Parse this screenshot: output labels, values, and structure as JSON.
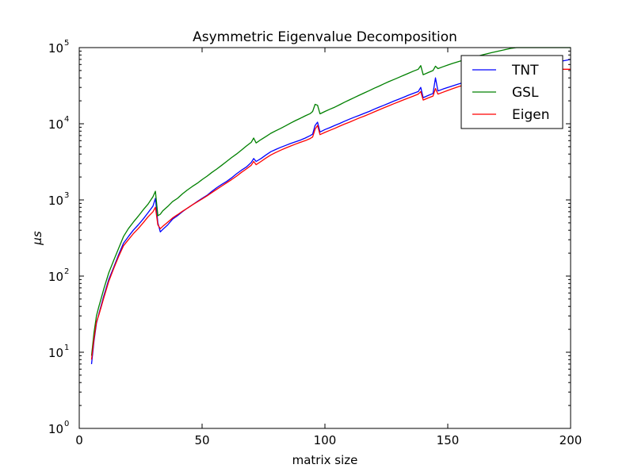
{
  "chart_data": {
    "type": "line",
    "title": "Asymmetric Eigenvalue Decomposition",
    "xlabel": "matrix size",
    "ylabel": "μs",
    "xlim": [
      0,
      200
    ],
    "ylim": [
      1,
      100000
    ],
    "yscale": "log",
    "grid": false,
    "legend_position": "top-right",
    "x_ticks": [
      0,
      50,
      100,
      150,
      200
    ],
    "x_tick_labels": [
      "0",
      "50",
      "100",
      "150",
      "200"
    ],
    "y_ticks": [
      1,
      10,
      100,
      1000,
      10000,
      100000
    ],
    "y_tick_labels": [
      {
        "base": "10",
        "exp": "0"
      },
      {
        "base": "10",
        "exp": "1"
      },
      {
        "base": "10",
        "exp": "2"
      },
      {
        "base": "10",
        "exp": "3"
      },
      {
        "base": "10",
        "exp": "4"
      },
      {
        "base": "10",
        "exp": "5"
      }
    ],
    "x": [
      5,
      6,
      7,
      8,
      9,
      10,
      12,
      14,
      16,
      18,
      20,
      22,
      24,
      26,
      28,
      30,
      31,
      32,
      33,
      34,
      36,
      38,
      40,
      42,
      44,
      46,
      48,
      50,
      52,
      54,
      56,
      58,
      60,
      62,
      64,
      66,
      68,
      70,
      71,
      72,
      74,
      76,
      78,
      80,
      82,
      84,
      86,
      88,
      90,
      92,
      94,
      95,
      96,
      97,
      98,
      100,
      102,
      104,
      106,
      108,
      110,
      112,
      114,
      116,
      118,
      120,
      122,
      124,
      126,
      128,
      130,
      132,
      134,
      136,
      138,
      139,
      140,
      142,
      144,
      145,
      146,
      148,
      150,
      152,
      154,
      156,
      158,
      160,
      162,
      164,
      166,
      168,
      170,
      172,
      174,
      176,
      178,
      180,
      182,
      184,
      186,
      188,
      190,
      192,
      194,
      196,
      198,
      200
    ],
    "series": [
      {
        "name": "TNT",
        "color": "#0000ff",
        "values": [
          7,
          14,
          24,
          32,
          42,
          55,
          90,
          130,
          190,
          270,
          330,
          400,
          470,
          560,
          680,
          830,
          1050,
          500,
          380,
          410,
          470,
          560,
          620,
          700,
          780,
          860,
          950,
          1050,
          1150,
          1300,
          1450,
          1600,
          1750,
          1950,
          2200,
          2450,
          2700,
          3100,
          3500,
          3200,
          3500,
          3900,
          4300,
          4600,
          4900,
          5200,
          5500,
          5800,
          6100,
          6500,
          7000,
          7300,
          9500,
          10500,
          7800,
          8400,
          8900,
          9500,
          10100,
          10800,
          11500,
          12200,
          12900,
          13700,
          14500,
          15500,
          16500,
          17500,
          18600,
          19800,
          21000,
          22300,
          23700,
          25100,
          26500,
          30000,
          22000,
          23500,
          25000,
          40000,
          27000,
          28500,
          30000,
          31500,
          33000,
          34500,
          36000,
          37500,
          39000,
          40500,
          42000,
          43500,
          45000,
          46500,
          48000,
          49500,
          51000,
          52500,
          54000,
          55500,
          57000,
          58500,
          60000,
          62000,
          64000,
          66000,
          68000,
          70000
        ]
      },
      {
        "name": "GSL",
        "color": "#008000",
        "values": [
          9,
          18,
          30,
          40,
          52,
          68,
          110,
          160,
          230,
          330,
          420,
          510,
          610,
          740,
          880,
          1100,
          1300,
          620,
          650,
          720,
          820,
          950,
          1050,
          1200,
          1350,
          1500,
          1650,
          1850,
          2050,
          2300,
          2550,
          2850,
          3200,
          3600,
          4000,
          4500,
          5100,
          5700,
          6500,
          5600,
          6200,
          6800,
          7500,
          8100,
          8700,
          9400,
          10200,
          11000,
          11800,
          12700,
          13600,
          14500,
          18000,
          17500,
          13500,
          14500,
          15500,
          16500,
          17800,
          19200,
          20600,
          22100,
          23700,
          25400,
          27200,
          29200,
          31200,
          33400,
          35700,
          38000,
          40500,
          43200,
          46000,
          49000,
          52000,
          58000,
          44000,
          47000,
          50000,
          57000,
          53000,
          56000,
          59000,
          62000,
          65000,
          68000,
          71000,
          74000,
          77000,
          80000,
          83000,
          86000,
          89000,
          92000,
          95000,
          98000,
          100000,
          100000,
          100000,
          100000,
          100000,
          100000,
          100000,
          100000,
          100000,
          100000,
          100000,
          100000
        ]
      },
      {
        "name": "Eigen",
        "color": "#ff0000",
        "values": [
          8,
          15,
          25,
          31,
          40,
          52,
          85,
          125,
          180,
          250,
          300,
          360,
          420,
          500,
          600,
          700,
          800,
          470,
          420,
          450,
          510,
          580,
          640,
          710,
          780,
          860,
          940,
          1030,
          1130,
          1250,
          1380,
          1520,
          1680,
          1850,
          2050,
          2300,
          2550,
          2850,
          3200,
          2900,
          3200,
          3550,
          3900,
          4200,
          4500,
          4800,
          5100,
          5400,
          5700,
          6000,
          6400,
          6700,
          8500,
          9500,
          7200,
          7700,
          8200,
          8700,
          9300,
          9900,
          10500,
          11200,
          11900,
          12600,
          13400,
          14300,
          15200,
          16200,
          17200,
          18300,
          19400,
          20600,
          21800,
          23100,
          24500,
          26500,
          20500,
          21800,
          23100,
          29000,
          24500,
          25900,
          27400,
          28900,
          30400,
          31900,
          33400,
          34900,
          36400,
          37900,
          39400,
          40900,
          42400,
          43900,
          45400,
          46900,
          48400,
          49900,
          51400,
          52000,
          52000,
          52000,
          52000,
          52000,
          52000,
          52000,
          52000,
          52000
        ]
      }
    ]
  }
}
